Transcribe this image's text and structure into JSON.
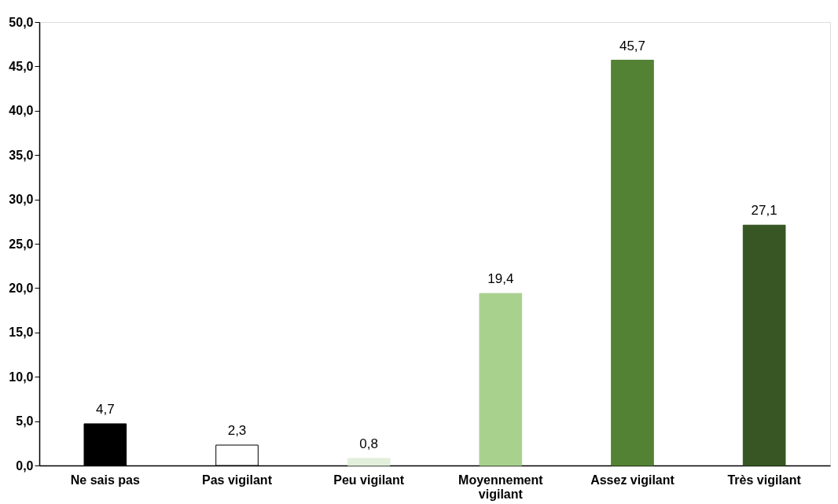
{
  "chart_data": {
    "type": "bar",
    "categories": [
      "Ne sais pas",
      "Pas vigilant",
      "Peu vigilant",
      "Moyennement vigilant",
      "Assez vigilant",
      "Très vigilant"
    ],
    "values": [
      4.7,
      2.3,
      0.8,
      19.4,
      45.7,
      27.1
    ],
    "value_labels": [
      "4,7",
      "2,3",
      "0,8",
      "19,4",
      "45,7",
      "27,1"
    ],
    "colors": [
      "#000000",
      "#ffffff",
      "#e2efda",
      "#a9d18e",
      "#548235",
      "#375623"
    ],
    "ylim": [
      0,
      50
    ],
    "yticks": [
      {
        "value": 0,
        "label": "0,0"
      },
      {
        "value": 5,
        "label": "5,0"
      },
      {
        "value": 10,
        "label": "10,0"
      },
      {
        "value": 15,
        "label": "15,0"
      },
      {
        "value": 20,
        "label": "20,0"
      },
      {
        "value": 25,
        "label": "25,0"
      },
      {
        "value": 30,
        "label": "30,0"
      },
      {
        "value": 35,
        "label": "35,0"
      },
      {
        "value": 40,
        "label": "40,0"
      },
      {
        "value": 45,
        "label": "45,0"
      },
      {
        "value": 50,
        "label": "50,0"
      }
    ],
    "grid": false
  }
}
